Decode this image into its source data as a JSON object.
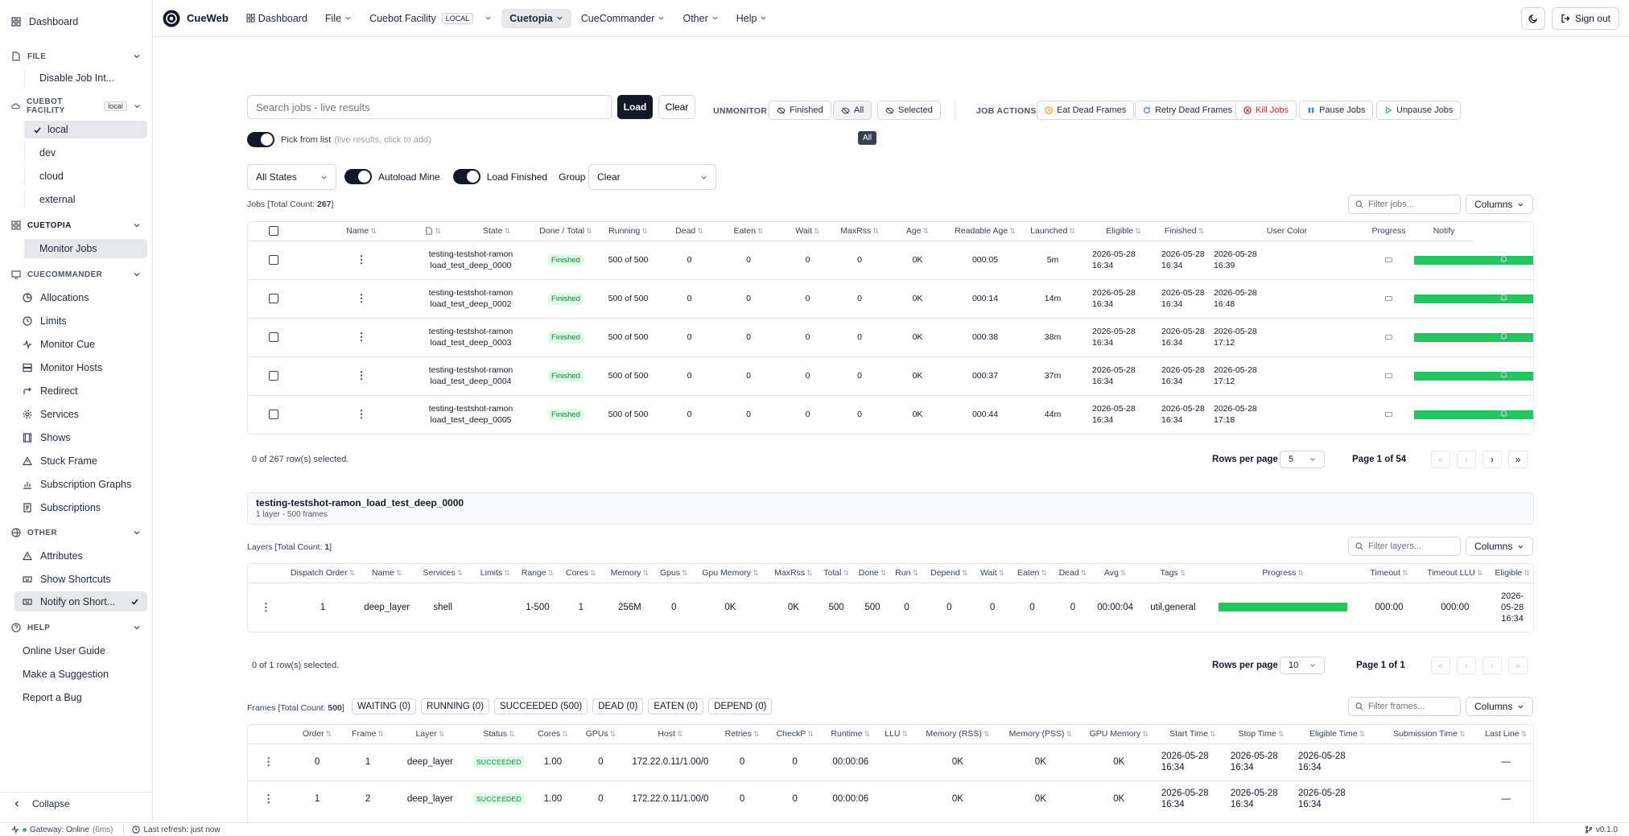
{
  "sidebar": {
    "dashboard": "Dashboard",
    "file_head": "FILE",
    "file_items": [
      "Disable Job Int..."
    ],
    "cuebot_head": "CUEBOT FACILITY",
    "cuebot_badge": "local",
    "facilities": [
      "local",
      "dev",
      "cloud",
      "external"
    ],
    "cuetopia_head": "CUETOPIA",
    "cuetopia_items": [
      "Monitor Jobs"
    ],
    "cuecommander_head": "CUECOMMANDER",
    "cuecommander_items": [
      "Allocations",
      "Limits",
      "Monitor Cue",
      "Monitor Hosts",
      "Redirect",
      "Services",
      "Shows",
      "Stuck Frame",
      "Subscription Graphs",
      "Subscriptions"
    ],
    "other_head": "OTHER",
    "other_items": [
      "Attributes",
      "Show Shortcuts",
      "Notify on Short..."
    ],
    "help_head": "HELP",
    "help_items": [
      "Online User Guide",
      "Make a Suggestion",
      "Report a Bug"
    ],
    "collapse": "Collapse"
  },
  "status": {
    "gateway": "Gateway: Online",
    "latency": "(6ms)",
    "refresh": "Last refresh: just now",
    "version": "v0.1.0"
  },
  "topbar": {
    "brand": "CueWeb",
    "nav": [
      "Dashboard",
      "File",
      "Cuebot Facility",
      "Cuetopia",
      "CueCommander",
      "Other",
      "Help"
    ],
    "local_badge": "LOCAL",
    "signout": "Sign out"
  },
  "toolbar": {
    "search_placeholder": "Search jobs - live results",
    "load": "Load",
    "clear": "Clear",
    "unmonitor": "UNMONITOR",
    "unmonitor_btns": [
      "Finished",
      "All",
      "Selected"
    ],
    "tooltip": "All",
    "job_actions": "JOB ACTIONS",
    "action_btns": [
      "Eat Dead Frames",
      "Retry Dead Frames",
      "Kill Jobs",
      "Pause Jobs",
      "Unpause Jobs"
    ],
    "pick": "Pick from list",
    "pick_hint": "(live results, click to add)",
    "states": "All States",
    "autoload": "Autoload Mine",
    "load_finished": "Load Finished",
    "group_by": "Group By",
    "group_value": "Clear"
  },
  "jobs": {
    "count_label": "Jobs [Total Count: ",
    "count": "267",
    "count_close": "]",
    "filter_placeholder": "Filter jobs...",
    "columns": "Columns",
    "headers": [
      "Name",
      "",
      "State",
      "Done / Total",
      "Running",
      "Dead",
      "Eaten",
      "Wait",
      "MaxRss",
      "Age",
      "Readable Age",
      "Launched",
      "Eligible",
      "Finished",
      "User Color",
      "Progress",
      "Notify"
    ],
    "rows": [
      {
        "name1": "testing-testshot-ramon",
        "name2": "load_test_deep_0000",
        "state": "Finished",
        "done": "500 of 500",
        "running": "0",
        "dead": "0",
        "eaten": "0",
        "wait": "0",
        "maxrss": "0K",
        "age": "000:05",
        "rage": "5m",
        "l1": "2026-05-28",
        "l2": "16:34",
        "e1": "2026-05-28",
        "e2": "16:34",
        "f1": "2026-05-28",
        "f2": "16:39",
        "progress": 1.0
      },
      {
        "name1": "testing-testshot-ramon",
        "name2": "load_test_deep_0002",
        "state": "Finished",
        "done": "500 of 500",
        "running": "0",
        "dead": "0",
        "eaten": "0",
        "wait": "0",
        "maxrss": "0K",
        "age": "000:14",
        "rage": "14m",
        "l1": "2026-05-28",
        "l2": "16:34",
        "e1": "2026-05-28",
        "e2": "16:34",
        "f1": "2026-05-28",
        "f2": "16:48",
        "progress": 1.0
      },
      {
        "name1": "testing-testshot-ramon",
        "name2": "load_test_deep_0003",
        "state": "Finished",
        "done": "500 of 500",
        "running": "0",
        "dead": "0",
        "eaten": "0",
        "wait": "0",
        "maxrss": "0K",
        "age": "000:38",
        "rage": "38m",
        "l1": "2026-05-28",
        "l2": "16:34",
        "e1": "2026-05-28",
        "e2": "16:34",
        "f1": "2026-05-28",
        "f2": "17:12",
        "progress": 1.0
      },
      {
        "name1": "testing-testshot-ramon",
        "name2": "load_test_deep_0004",
        "state": "Finished",
        "done": "500 of 500",
        "running": "0",
        "dead": "0",
        "eaten": "0",
        "wait": "0",
        "maxrss": "0K",
        "age": "000:37",
        "rage": "37m",
        "l1": "2026-05-28",
        "l2": "16:34",
        "e1": "2026-05-28",
        "e2": "16:34",
        "f1": "2026-05-28",
        "f2": "17:12",
        "progress": 1.0
      },
      {
        "name1": "testing-testshot-ramon",
        "name2": "load_test_deep_0005",
        "state": "Finished",
        "done": "500 of 500",
        "running": "0",
        "dead": "0",
        "eaten": "0",
        "wait": "0",
        "maxrss": "0K",
        "age": "000:44",
        "rage": "44m",
        "l1": "2026-05-28",
        "l2": "16:34",
        "e1": "2026-05-28",
        "e2": "16:34",
        "f1": "2026-05-28",
        "f2": "17:18",
        "progress": 1.0
      }
    ],
    "selected": "0 of 267 row(s) selected.",
    "rows_per_page": "Rows per page",
    "rpp_value": "5",
    "page": "Page 1 of 54"
  },
  "job_detail": {
    "name": "testing-testshot-ramon_load_test_deep_0000",
    "sub": "1 layer - 500 frames"
  },
  "layers": {
    "count_label": "Layers [Total Count: ",
    "count": "1",
    "count_close": "]",
    "filter_placeholder": "Filter layers...",
    "columns": "Columns",
    "headers": [
      "Dispatch Order",
      "Name",
      "Services",
      "Limits",
      "Range",
      "Cores",
      "Memory",
      "Gpus",
      "Gpu Memory",
      "MaxRss",
      "Total",
      "Done",
      "Run",
      "Depend",
      "Wait",
      "Eaten",
      "Dead",
      "Avg",
      "Tags",
      "Progress",
      "Timeout",
      "Timeout LLU",
      "Eligible"
    ],
    "row": {
      "order": "1",
      "name": "deep_layer",
      "services": "shell",
      "limits": "",
      "range": "1-500",
      "cores": "1",
      "memory": "256M",
      "gpus": "0",
      "gpumem": "0K",
      "maxrss": "0K",
      "total": "500",
      "done": "500",
      "run": "0",
      "depend": "0",
      "wait": "0",
      "eaten": "0",
      "dead": "0",
      "avg": "00:00:04",
      "tags": "util,general",
      "progress": 1.0,
      "timeout": "000:00",
      "timeoutllu": "000:00",
      "elig1": "2026-",
      "elig2": "05-28",
      "elig3": "16:34"
    },
    "selected": "0 of 1 row(s) selected.",
    "rows_per_page": "Rows per page",
    "rpp_value": "10",
    "page": "Page 1 of 1"
  },
  "frames": {
    "count_label": "Frames [Total Count: ",
    "count": "500",
    "count_close": "]",
    "chips": [
      "WAITING (0)",
      "RUNNING (0)",
      "SUCCEEDED (500)",
      "DEAD (0)",
      "EATEN (0)",
      "DEPEND (0)"
    ],
    "filter_placeholder": "Filter frames...",
    "columns": "Columns",
    "headers": [
      "Order",
      "Frame",
      "Layer",
      "Status",
      "Cores",
      "GPUs",
      "Host",
      "Retries",
      "CheckP",
      "Runtime",
      "LLU",
      "Memory (RSS)",
      "Memory (PSS)",
      "GPU Memory",
      "Start Time",
      "Stop Time",
      "Eligible Time",
      "Submission Time",
      "Last Line"
    ],
    "rows": [
      {
        "order": "0",
        "frame": "1",
        "layer": "deep_layer",
        "status": "SUCCEEDED",
        "cores": "1.00",
        "gpus": "0",
        "host": "172.22.0.11/1.00/0",
        "retries": "0",
        "checkp": "0",
        "runtime": "00:00:06",
        "llu": "",
        "rss": "0K",
        "pss": "0K",
        "gpumem": "0K",
        "s1": "2026-05-28",
        "s2": "16:34",
        "t1": "2026-05-28",
        "t2": "16:34",
        "e1": "2026-05-28",
        "e2": "16:34",
        "sub": "",
        "last": "—"
      },
      {
        "order": "1",
        "frame": "2",
        "layer": "deep_layer",
        "status": "SUCCEEDED",
        "cores": "1.00",
        "gpus": "0",
        "host": "172.22.0.11/1.00/0",
        "retries": "0",
        "checkp": "0",
        "runtime": "00:00:06",
        "llu": "",
        "rss": "0K",
        "pss": "0K",
        "gpumem": "0K",
        "s1": "2026-05-28",
        "s2": "16:34",
        "t1": "2026-05-28",
        "t2": "16:34",
        "e1": "2026-05-28",
        "e2": "16:34",
        "sub": "",
        "last": "—"
      }
    ]
  }
}
